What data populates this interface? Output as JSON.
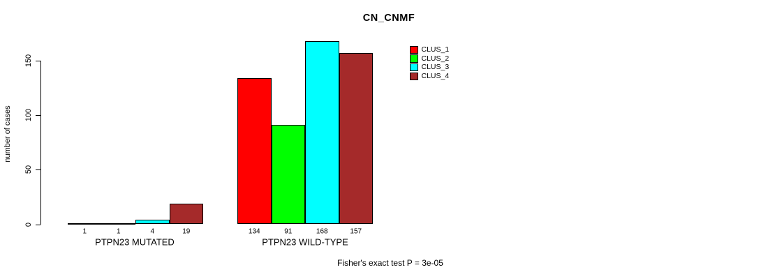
{
  "title": "CN_CNMF",
  "chart_data": {
    "type": "bar",
    "title": "CN_CNMF",
    "xlabel": "",
    "ylabel": "number of cases",
    "ylim": [
      0,
      168
    ],
    "yticks": [
      0,
      50,
      100,
      150
    ],
    "grid": false,
    "legend_position": "top-right",
    "categories": [
      "PTPN23 MUTATED",
      "PTPN23 WILD-TYPE"
    ],
    "series": [
      {
        "name": "CLUS_1",
        "color": "#FF0000",
        "values": [
          1,
          134
        ]
      },
      {
        "name": "CLUS_2",
        "color": "#00FF00",
        "values": [
          1,
          91
        ]
      },
      {
        "name": "CLUS_3",
        "color": "#00FFFF",
        "values": [
          4,
          168
        ]
      },
      {
        "name": "CLUS_4",
        "color": "#A52A2A",
        "values": [
          19,
          157
        ]
      }
    ],
    "annotation": "Fisher's exact test P = 3e-05"
  }
}
